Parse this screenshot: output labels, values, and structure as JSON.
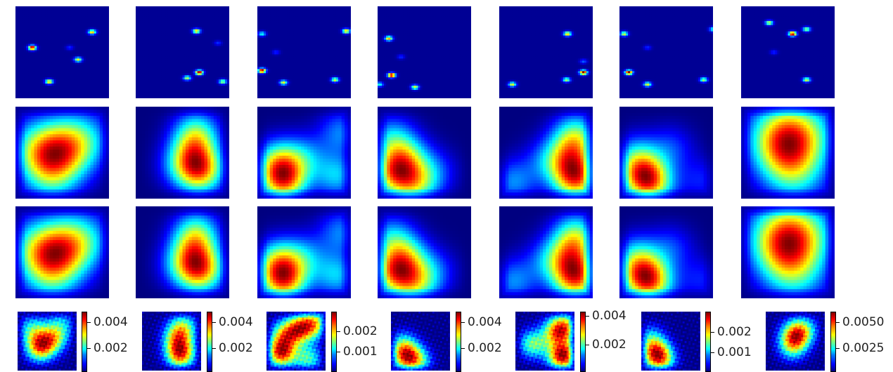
{
  "colormap": "jet",
  "colors": {
    "background": "#ffffff",
    "low": "#00008b",
    "high": "#7f0000"
  },
  "grid": {
    "columns": 7,
    "rows": 4
  },
  "panels": [
    {
      "row1_hotspots": [
        [
          0.18,
          0.45,
          1.0
        ],
        [
          0.67,
          0.58,
          0.6
        ],
        [
          0.82,
          0.28,
          0.7
        ],
        [
          0.36,
          0.82,
          0.7
        ],
        [
          0.58,
          0.45,
          0.15
        ]
      ],
      "blobs": [
        [
          0.35,
          0.55,
          1.0
        ],
        [
          0.55,
          0.45,
          0.7
        ],
        [
          0.72,
          0.35,
          0.55
        ],
        [
          0.4,
          0.8,
          0.45
        ],
        [
          0.2,
          0.4,
          0.4
        ]
      ],
      "spread": 0.22,
      "row4_blobs": [
        [
          0.38,
          0.6,
          1.0
        ],
        [
          0.6,
          0.45,
          0.7
        ],
        [
          0.25,
          0.3,
          0.5
        ],
        [
          0.75,
          0.2,
          0.35
        ]
      ],
      "colorbar": {
        "ticks": [
          {
            "label": "0.004",
            "frac": 0.83
          },
          {
            "label": "0.002",
            "frac": 0.4
          }
        ]
      }
    },
    {
      "row1_hotspots": [
        [
          0.68,
          0.72,
          1.0
        ],
        [
          0.65,
          0.27,
          0.7
        ],
        [
          0.55,
          0.78,
          0.55
        ],
        [
          0.93,
          0.82,
          0.55
        ],
        [
          0.88,
          0.4,
          0.15
        ]
      ],
      "blobs": [
        [
          0.7,
          0.7,
          1.0
        ],
        [
          0.62,
          0.48,
          0.6
        ],
        [
          0.65,
          0.28,
          0.6
        ],
        [
          0.5,
          0.65,
          0.4
        ]
      ],
      "spread": 0.17,
      "row4_blobs": [
        [
          0.65,
          0.72,
          1.0
        ],
        [
          0.6,
          0.45,
          0.65
        ],
        [
          0.7,
          0.25,
          0.5
        ]
      ],
      "colorbar": {
        "ticks": [
          {
            "label": "0.004",
            "frac": 0.83
          },
          {
            "label": "0.002",
            "frac": 0.4
          }
        ]
      }
    },
    {
      "row1_hotspots": [
        [
          0.05,
          0.7,
          1.0
        ],
        [
          0.28,
          0.83,
          0.6
        ],
        [
          0.95,
          0.27,
          0.7
        ],
        [
          0.83,
          0.8,
          0.6
        ],
        [
          0.2,
          0.5,
          0.15
        ],
        [
          0.05,
          0.3,
          0.4
        ]
      ],
      "blobs": [
        [
          0.28,
          0.8,
          1.0
        ],
        [
          0.22,
          0.6,
          0.6
        ],
        [
          0.85,
          0.75,
          0.45
        ],
        [
          0.9,
          0.28,
          0.35
        ],
        [
          0.5,
          0.55,
          0.35
        ]
      ],
      "spread": 0.17,
      "row4_blobs": [
        [
          0.25,
          0.7,
          1.0
        ],
        [
          0.55,
          0.3,
          0.8
        ],
        [
          0.8,
          0.2,
          0.7
        ],
        [
          0.3,
          0.4,
          0.6
        ],
        [
          0.7,
          0.8,
          0.5
        ]
      ],
      "colorbar": {
        "ticks": [
          {
            "label": "0.002",
            "frac": 0.68
          },
          {
            "label": "0.001",
            "frac": 0.34
          }
        ]
      }
    },
    {
      "row1_hotspots": [
        [
          0.15,
          0.75,
          1.0
        ],
        [
          0.4,
          0.88,
          0.6
        ],
        [
          0.12,
          0.35,
          0.7
        ],
        [
          0.02,
          0.85,
          0.4
        ],
        [
          0.25,
          0.55,
          0.15
        ]
      ],
      "blobs": [
        [
          0.18,
          0.72,
          1.0
        ],
        [
          0.4,
          0.85,
          0.7
        ],
        [
          0.3,
          0.55,
          0.6
        ],
        [
          0.15,
          0.35,
          0.5
        ],
        [
          0.6,
          0.7,
          0.3
        ]
      ],
      "spread": 0.17,
      "row4_blobs": [
        [
          0.25,
          0.75,
          1.0
        ],
        [
          0.45,
          0.85,
          0.6
        ],
        [
          0.2,
          0.55,
          0.4
        ]
      ],
      "colorbar": {
        "ticks": [
          {
            "label": "0.004",
            "frac": 0.83
          },
          {
            "label": "0.002",
            "frac": 0.4
          }
        ]
      }
    },
    {
      "row1_hotspots": [
        [
          0.9,
          0.72,
          1.0
        ],
        [
          0.73,
          0.3,
          0.7
        ],
        [
          0.14,
          0.85,
          0.6
        ],
        [
          0.72,
          0.8,
          0.55
        ],
        [
          0.9,
          0.6,
          0.2
        ]
      ],
      "blobs": [
        [
          0.82,
          0.78,
          1.0
        ],
        [
          0.75,
          0.55,
          0.6
        ],
        [
          0.82,
          0.32,
          0.6
        ],
        [
          0.15,
          0.82,
          0.35
        ],
        [
          0.5,
          0.6,
          0.25
        ]
      ],
      "spread": 0.17,
      "row4_blobs": [
        [
          0.8,
          0.75,
          1.0
        ],
        [
          0.7,
          0.35,
          0.6
        ],
        [
          0.3,
          0.55,
          0.5
        ],
        [
          0.85,
          0.25,
          0.5
        ]
      ],
      "colorbar": {
        "ticks": [
          {
            "label": "0.004",
            "frac": 0.93
          },
          {
            "label": "0.002",
            "frac": 0.45
          }
        ]
      }
    },
    {
      "row1_hotspots": [
        [
          0.1,
          0.72,
          1.0
        ],
        [
          0.3,
          0.85,
          0.6
        ],
        [
          0.05,
          0.3,
          0.6
        ],
        [
          0.9,
          0.8,
          0.55
        ],
        [
          1.0,
          0.25,
          0.4
        ],
        [
          0.3,
          0.45,
          0.15
        ]
      ],
      "blobs": [
        [
          0.25,
          0.75,
          1.0
        ],
        [
          0.35,
          0.85,
          0.7
        ],
        [
          0.18,
          0.55,
          0.5
        ],
        [
          0.88,
          0.8,
          0.25
        ],
        [
          0.55,
          0.45,
          0.3
        ]
      ],
      "spread": 0.17,
      "row4_blobs": [
        [
          0.25,
          0.7,
          1.0
        ],
        [
          0.35,
          0.85,
          0.55
        ],
        [
          0.15,
          0.45,
          0.4
        ]
      ],
      "colorbar": {
        "ticks": [
          {
            "label": "0.002",
            "frac": 0.66
          },
          {
            "label": "0.001",
            "frac": 0.33
          }
        ]
      }
    },
    {
      "row1_hotspots": [
        [
          0.55,
          0.3,
          1.0
        ],
        [
          0.7,
          0.8,
          0.6
        ],
        [
          0.3,
          0.18,
          0.6
        ],
        [
          0.7,
          0.25,
          0.55
        ],
        [
          0.35,
          0.5,
          0.15
        ]
      ],
      "blobs": [
        [
          0.53,
          0.35,
          1.0
        ],
        [
          0.45,
          0.55,
          0.6
        ],
        [
          0.6,
          0.75,
          0.55
        ],
        [
          0.35,
          0.25,
          0.45
        ],
        [
          0.75,
          0.25,
          0.4
        ]
      ],
      "spread": 0.24,
      "row4_blobs": [
        [
          0.5,
          0.4,
          1.0
        ],
        [
          0.45,
          0.6,
          0.6
        ],
        [
          0.65,
          0.3,
          0.5
        ]
      ],
      "colorbar": {
        "ticks": [
          {
            "label": "0.0050",
            "frac": 0.83
          },
          {
            "label": "0.0025",
            "frac": 0.4
          }
        ]
      }
    }
  ]
}
